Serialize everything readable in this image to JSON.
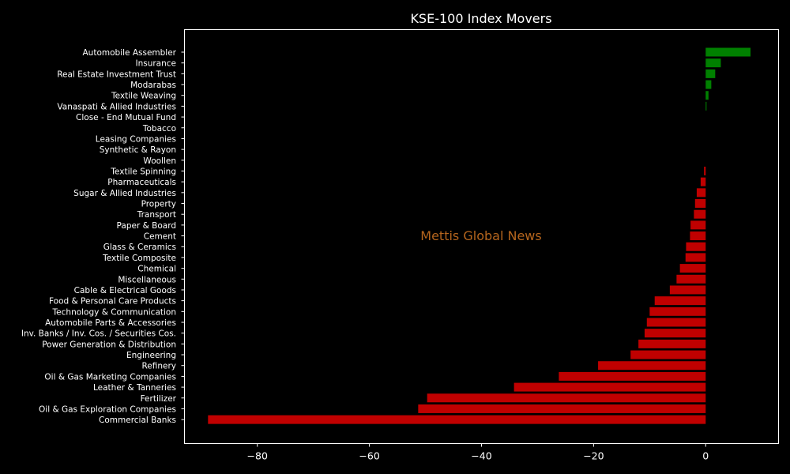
{
  "chart_data": {
    "type": "bar",
    "orientation": "horizontal",
    "title": "KSE-100 Index Movers",
    "xlabel": "",
    "ylabel": "",
    "xlim": [
      -93,
      13
    ],
    "x_ticks": [
      -80,
      -60,
      -40,
      -20,
      0
    ],
    "x_tick_labels": [
      "−80",
      "−60",
      "−40",
      "−20",
      "0"
    ],
    "grid": false,
    "watermark": "Mettis Global News",
    "positive_color": "#008000",
    "negative_color": "#c00000",
    "background_color": "#000000",
    "categories": [
      "Automobile Assembler",
      "Insurance",
      "Real Estate Investment Trust",
      "Modarabas",
      "Textile Weaving",
      "Vanaspati & Allied Industries",
      "Close - End Mutual Fund",
      "Tobacco",
      "Leasing Companies",
      "Synthetic & Rayon",
      "Woollen",
      "Textile Spinning",
      "Pharmaceuticals",
      "Sugar & Allied Industries",
      "Property",
      "Transport",
      "Paper & Board",
      "Cement",
      "Glass & Ceramics",
      "Textile Composite",
      "Chemical",
      "Miscellaneous",
      "Cable & Electrical Goods",
      "Food & Personal Care Products",
      "Technology & Communication",
      "Automobile Parts & Accessories",
      "Inv. Banks / Inv. Cos. / Securities Cos.",
      "Power Generation & Distribution",
      "Engineering",
      "Refinery",
      "Oil & Gas Marketing Companies",
      "Leather & Tanneries",
      "Fertilizer",
      "Oil & Gas Exploration Companies",
      "Commercial Banks"
    ],
    "values": [
      8.0,
      2.7,
      1.7,
      1.0,
      0.5,
      0.15,
      0.0,
      0.0,
      0.0,
      0.0,
      0.0,
      -0.3,
      -0.9,
      -1.6,
      -1.9,
      -2.1,
      -2.7,
      -2.8,
      -3.5,
      -3.6,
      -4.6,
      -5.2,
      -6.4,
      -9.1,
      -10.0,
      -10.5,
      -10.9,
      -12.0,
      -13.4,
      -19.2,
      -26.2,
      -34.2,
      -49.7,
      -51.3,
      -88.8
    ]
  }
}
